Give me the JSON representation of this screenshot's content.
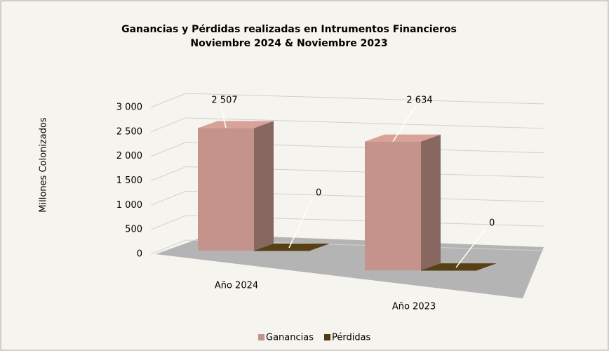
{
  "chart_data": {
    "type": "bar3d",
    "title": "Ganancias y Pérdidas realizadas en Intrumentos Financieros",
    "subtitle": "Noviembre 2024 & Noviembre 2023",
    "y_label": "Millones Colonizados",
    "categories": [
      "Año 2024",
      "Año 2023"
    ],
    "series": [
      {
        "name": "Ganancias",
        "color": "#c4938b",
        "values": [
          2507,
          2634
        ],
        "value_labels": [
          "2 507",
          "2 634"
        ]
      },
      {
        "name": "Pérdidas",
        "color": "#4f3a12",
        "values": [
          0,
          0
        ]
      }
    ],
    "ylim": [
      0,
      3000
    ],
    "yticks": [
      0,
      500,
      {
        "value": 1000,
        "label": "1 000"
      },
      {
        "value": 1500,
        "label": "1 500"
      },
      {
        "value": 2000,
        "label": "2 000"
      },
      {
        "value": 2500,
        "label": "2 500"
      },
      {
        "value": 3000,
        "label": "3 000"
      }
    ],
    "grid": true,
    "legend": "bottom"
  }
}
